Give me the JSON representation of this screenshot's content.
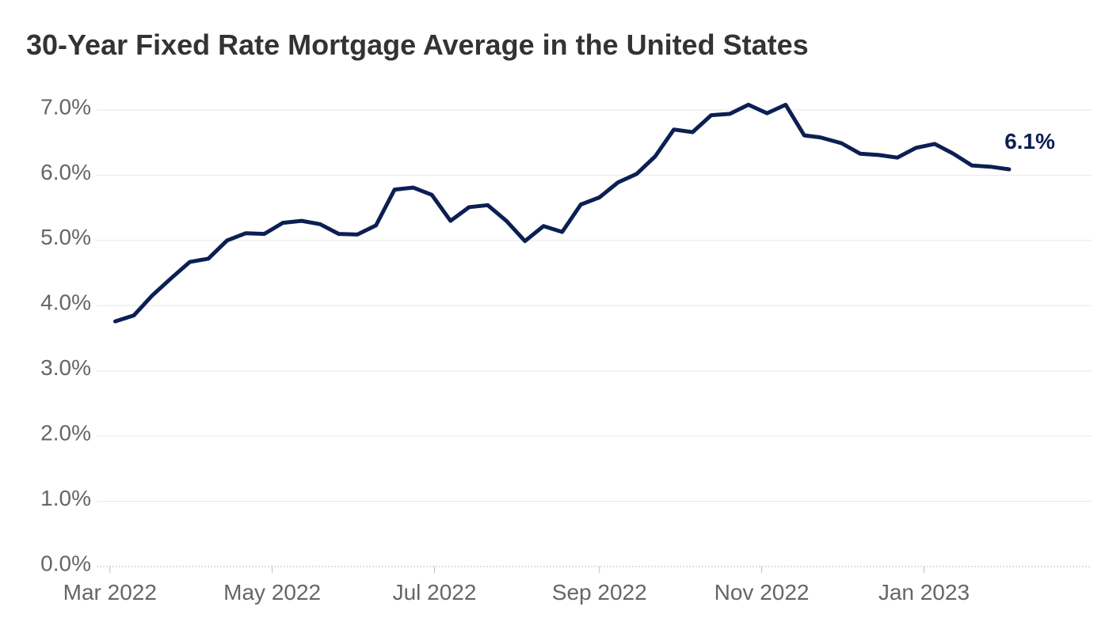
{
  "chart_data": {
    "type": "line",
    "title": "30-Year Fixed Rate Mortgage Average in the United States",
    "xlabel": "",
    "ylabel": "",
    "ylim": [
      0,
      7
    ],
    "xlim": [
      "2022-02-24",
      "2023-03-05"
    ],
    "grid": true,
    "line_color": "#0b1f52",
    "yticks": [
      {
        "value": 0,
        "label": "0.0%"
      },
      {
        "value": 1,
        "label": "1.0%"
      },
      {
        "value": 2,
        "label": "2.0%"
      },
      {
        "value": 3,
        "label": "3.0%"
      },
      {
        "value": 4,
        "label": "4.0%"
      },
      {
        "value": 5,
        "label": "5.0%"
      },
      {
        "value": 6,
        "label": "6.0%"
      },
      {
        "value": 7,
        "label": "7.0%"
      }
    ],
    "xticks": [
      {
        "date": "2022-03-01",
        "label": "Mar 2022"
      },
      {
        "date": "2022-05-01",
        "label": "May 2022"
      },
      {
        "date": "2022-07-01",
        "label": "Jul 2022"
      },
      {
        "date": "2022-09-01",
        "label": "Sep 2022"
      },
      {
        "date": "2022-11-01",
        "label": "Nov 2022"
      },
      {
        "date": "2023-01-01",
        "label": "Jan 2023"
      }
    ],
    "series": [
      {
        "end_label": "6.1%",
        "x": [
          "2022-03-03",
          "2022-03-10",
          "2022-03-17",
          "2022-03-24",
          "2022-03-31",
          "2022-04-07",
          "2022-04-14",
          "2022-04-21",
          "2022-04-28",
          "2022-05-05",
          "2022-05-12",
          "2022-05-19",
          "2022-05-26",
          "2022-06-02",
          "2022-06-09",
          "2022-06-16",
          "2022-06-23",
          "2022-06-30",
          "2022-07-07",
          "2022-07-14",
          "2022-07-21",
          "2022-07-28",
          "2022-08-04",
          "2022-08-11",
          "2022-08-18",
          "2022-08-25",
          "2022-09-01",
          "2022-09-08",
          "2022-09-15",
          "2022-09-22",
          "2022-09-29",
          "2022-10-06",
          "2022-10-13",
          "2022-10-20",
          "2022-10-27",
          "2022-11-03",
          "2022-11-10",
          "2022-11-17",
          "2022-11-23",
          "2022-12-01",
          "2022-12-08",
          "2022-12-15",
          "2022-12-22",
          "2022-12-29",
          "2023-01-05",
          "2023-01-12",
          "2023-01-19",
          "2023-01-26",
          "2023-02-02"
        ],
        "values": [
          3.76,
          3.85,
          4.16,
          4.42,
          4.67,
          4.72,
          5.0,
          5.11,
          5.1,
          5.27,
          5.3,
          5.25,
          5.1,
          5.09,
          5.23,
          5.78,
          5.81,
          5.7,
          5.3,
          5.51,
          5.54,
          5.3,
          4.99,
          5.22,
          5.13,
          5.55,
          5.66,
          5.89,
          6.02,
          6.29,
          6.7,
          6.66,
          6.92,
          6.94,
          7.08,
          6.95,
          7.08,
          6.61,
          6.58,
          6.49,
          6.33,
          6.31,
          6.27,
          6.42,
          6.48,
          6.33,
          6.15,
          6.13,
          6.09
        ]
      }
    ]
  }
}
